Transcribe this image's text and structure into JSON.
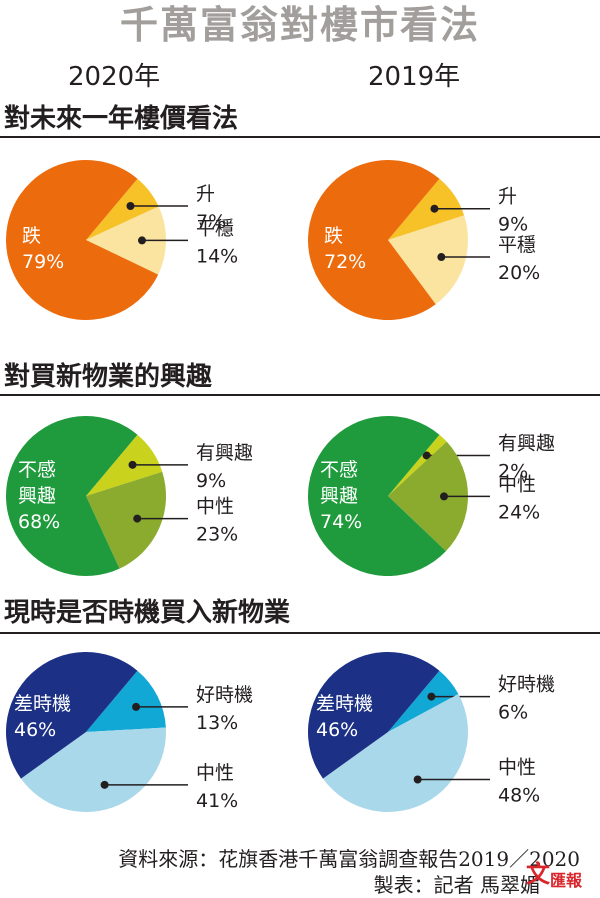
{
  "title": "千萬富翁對樓市看法",
  "years": [
    "2020年",
    "2019年"
  ],
  "footer": {
    "source": "資料來源：花旗香港千萬富翁調查報告2019／2020",
    "credit": "製表：記者 馬翠媚"
  },
  "logo_text": "文匯報",
  "chart_data": [
    {
      "type": "pie",
      "title": "對未來一年樓價看法",
      "panels": [
        {
          "label": "2020年",
          "slices": [
            {
              "name": "升",
              "value": 7,
              "color": "#f7c128"
            },
            {
              "name": "平穩",
              "value": 14,
              "color": "#fbe3a0"
            },
            {
              "name": "跌",
              "value": 79,
              "color": "#ec6b0c"
            }
          ]
        },
        {
          "label": "2019年",
          "slices": [
            {
              "name": "升",
              "value": 9,
              "color": "#f7c128"
            },
            {
              "name": "平穩",
              "value": 20,
              "color": "#fbe3a0"
            },
            {
              "name": "跌",
              "value": 72,
              "color": "#ec6b0c"
            }
          ]
        }
      ]
    },
    {
      "type": "pie",
      "title": "對買新物業的興趣",
      "panels": [
        {
          "label": "2020年",
          "slices": [
            {
              "name": "有興趣",
              "value": 9,
              "color": "#c9d21c"
            },
            {
              "name": "中性",
              "value": 23,
              "color": "#8aab2e"
            },
            {
              "name": "不感興趣",
              "value": 68,
              "color": "#1f9b3d"
            }
          ]
        },
        {
          "label": "2019年",
          "slices": [
            {
              "name": "有興趣",
              "value": 2,
              "color": "#c9d21c"
            },
            {
              "name": "中性",
              "value": 24,
              "color": "#8aab2e"
            },
            {
              "name": "不感興趣",
              "value": 74,
              "color": "#1f9b3d"
            }
          ]
        }
      ]
    },
    {
      "type": "pie",
      "title": "現時是否時機買入新物業",
      "panels": [
        {
          "label": "2020年",
          "slices": [
            {
              "name": "好時機",
              "value": 13,
              "color": "#11a8d6"
            },
            {
              "name": "中性",
              "value": 41,
              "color": "#a9d8ea"
            },
            {
              "name": "差時機",
              "value": 46,
              "color": "#1c3185"
            }
          ]
        },
        {
          "label": "2019年",
          "slices": [
            {
              "name": "好時機",
              "value": 6,
              "color": "#11a8d6"
            },
            {
              "name": "中性",
              "value": 48,
              "color": "#a9d8ea"
            },
            {
              "name": "差時機",
              "value": 46,
              "color": "#1c3185"
            }
          ]
        }
      ]
    }
  ]
}
